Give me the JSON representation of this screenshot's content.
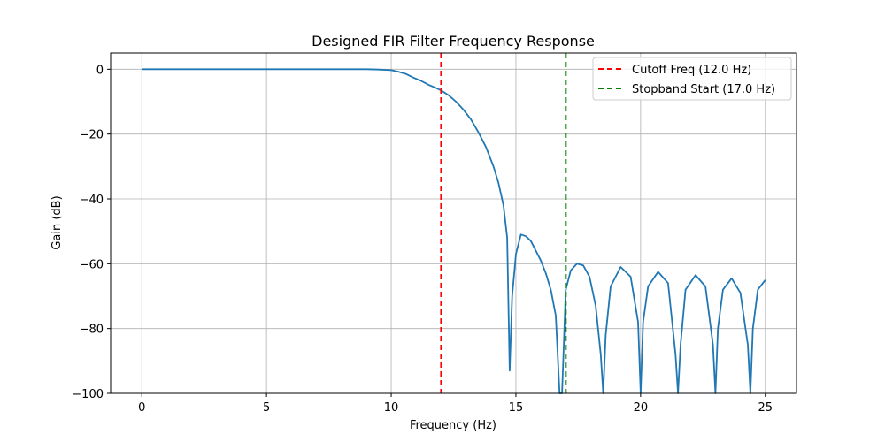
{
  "chart_data": {
    "type": "line",
    "title": "Designed FIR Filter Frequency Response",
    "xlabel": "Frequency (Hz)",
    "ylabel": "Gain (dB)",
    "xlim": [
      -1.25,
      26.25
    ],
    "ylim": [
      -100,
      5
    ],
    "xticks": [
      0,
      5,
      10,
      15,
      20,
      25
    ],
    "xtick_labels": [
      "0",
      "5",
      "10",
      "15",
      "20",
      "25"
    ],
    "yticks": [
      0,
      -20,
      -40,
      -60,
      -80,
      -100
    ],
    "ytick_labels": [
      "0",
      "−20",
      "−40",
      "−60",
      "−80",
      "−100"
    ],
    "grid": true,
    "legend_position": "top-right",
    "series": [
      {
        "color": "#1f77b4",
        "x": [
          0,
          1,
          2,
          3,
          4,
          5,
          6,
          7,
          8,
          9,
          9.5,
          10,
          10.3,
          10.6,
          10.9,
          11.2,
          11.5,
          11.8,
          12,
          12.3,
          12.6,
          12.9,
          13.2,
          13.5,
          13.8,
          14.1,
          14.3,
          14.5,
          14.65,
          14.75,
          14.85,
          15.0,
          15.2,
          15.4,
          15.6,
          15.8,
          16.0,
          16.2,
          16.4,
          16.6,
          16.75,
          16.85,
          17.0,
          17.2,
          17.45,
          17.7,
          17.95,
          18.2,
          18.4,
          18.5,
          18.6,
          18.8,
          19.2,
          19.6,
          19.9,
          20.0,
          20.1,
          20.3,
          20.7,
          21.1,
          21.4,
          21.5,
          21.6,
          21.8,
          22.2,
          22.6,
          22.9,
          23.0,
          23.1,
          23.3,
          23.65,
          24.0,
          24.3,
          24.4,
          24.5,
          24.7,
          25.0
        ],
        "y": [
          0,
          0,
          0,
          0,
          0,
          0,
          0,
          0,
          0,
          0,
          -0.1,
          -0.3,
          -0.8,
          -1.5,
          -2.6,
          -3.6,
          -4.8,
          -5.8,
          -6.5,
          -8,
          -10,
          -12.5,
          -15.5,
          -19.5,
          -24,
          -30,
          -35,
          -42,
          -52,
          -93,
          -70,
          -57,
          -51,
          -51.5,
          -53,
          -56,
          -59,
          -63,
          -68,
          -76,
          -100,
          -100,
          -68,
          -62,
          -60,
          -60.5,
          -64,
          -73,
          -88,
          -100,
          -82,
          -67,
          -61,
          -64,
          -78,
          -100,
          -78,
          -67,
          -62.5,
          -66,
          -88,
          -100,
          -85,
          -68,
          -63.5,
          -67,
          -85,
          -100,
          -80,
          -68,
          -64.5,
          -69,
          -85,
          -100,
          -80,
          -68,
          -65
        ]
      }
    ],
    "vlines": [
      {
        "name": "Cutoff Freq (12.0 Hz)",
        "x": 12.0,
        "color": "#ff0000",
        "dash": "6,4"
      },
      {
        "name": "Stopband Start (17.0 Hz)",
        "x": 17.0,
        "color": "#008000",
        "dash": "6,4"
      }
    ]
  }
}
